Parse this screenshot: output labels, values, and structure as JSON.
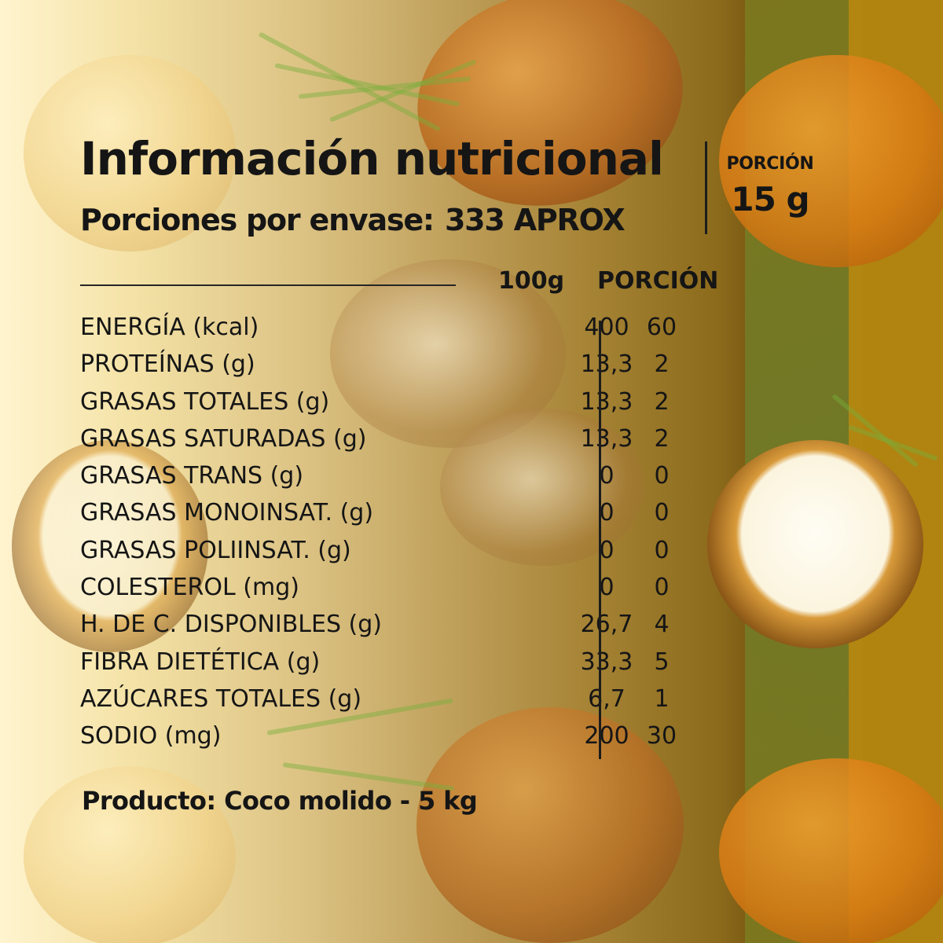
{
  "header": {
    "title": "Información nutricional",
    "servings_label": "Porciones por envase:",
    "servings_value": "333 APROX"
  },
  "portion": {
    "label": "PORCIÓN",
    "value": "15 g"
  },
  "table": {
    "columns": [
      "100g",
      "PORCIÓN"
    ],
    "rows": [
      {
        "label": "ENERGÍA (kcal)",
        "per_100g": "400",
        "per_portion": "60"
      },
      {
        "label": "PROTEÍNAS (g)",
        "per_100g": "13,3",
        "per_portion": "2"
      },
      {
        "label": "GRASAS TOTALES (g)",
        "per_100g": "13,3",
        "per_portion": "2"
      },
      {
        "label": "GRASAS SATURADAS (g)",
        "per_100g": "13,3",
        "per_portion": "2"
      },
      {
        "label": "GRASAS TRANS (g)",
        "per_100g": "0",
        "per_portion": "0"
      },
      {
        "label": "GRASAS MONOINSAT. (g)",
        "per_100g": "0",
        "per_portion": "0"
      },
      {
        "label": "GRASAS POLIINSAT. (g)",
        "per_100g": "0",
        "per_portion": "0"
      },
      {
        "label": "COLESTEROL (mg)",
        "per_100g": "0",
        "per_portion": "0"
      },
      {
        "label": "H. DE C. DISPONIBLES (g)",
        "per_100g": "26,7",
        "per_portion": "4"
      },
      {
        "label": "FIBRA DIETÉTICA (g)",
        "per_100g": "33,3",
        "per_portion": "5"
      },
      {
        "label": "AZÚCARES TOTALES (g)",
        "per_100g": "6,7",
        "per_portion": "1"
      },
      {
        "label": "SODIO (mg)",
        "per_100g": "200",
        "per_portion": "30"
      }
    ]
  },
  "footer": {
    "product": "Producto: Coco molido - 5 kg"
  }
}
